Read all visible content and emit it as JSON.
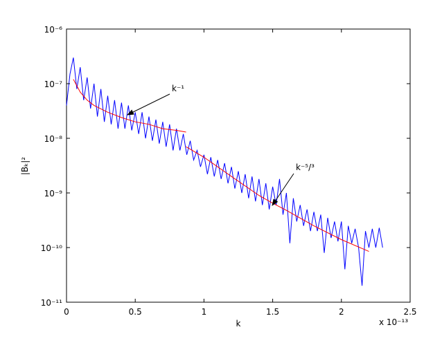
{
  "chart_data": {
    "type": "line",
    "xlabel": "k",
    "ylabel": "|Bₖ|²",
    "x_multiplier": "x 10⁻¹³",
    "yscale": "log",
    "xlim": [
      0,
      2.5
    ],
    "xticks": [
      0,
      0.5,
      1,
      1.5,
      2,
      2.5
    ],
    "ylim": [
      1e-11,
      1e-06
    ],
    "yticks": [
      {
        "value": 1e-11,
        "label": "10⁻¹¹"
      },
      {
        "value": 1e-10,
        "label": "10⁻¹⁰"
      },
      {
        "value": 1e-09,
        "label": "10⁻⁹"
      },
      {
        "value": 1e-08,
        "label": "10⁻⁸"
      },
      {
        "value": 1e-07,
        "label": "10⁻⁷"
      },
      {
        "value": 1e-06,
        "label": "10⁻⁶"
      }
    ],
    "annotations": [
      "k⁻¹",
      "k⁻⁵/³"
    ],
    "series": [
      {
        "color": "#0000ff",
        "x": [
          0,
          0.025,
          0.05,
          0.075,
          0.1,
          0.125,
          0.15,
          0.175,
          0.2,
          0.225,
          0.25,
          0.275,
          0.3,
          0.325,
          0.35,
          0.375,
          0.4,
          0.425,
          0.45,
          0.475,
          0.5,
          0.525,
          0.55,
          0.575,
          0.6,
          0.625,
          0.65,
          0.675,
          0.7,
          0.725,
          0.75,
          0.775,
          0.8,
          0.825,
          0.85,
          0.875,
          0.9,
          0.925,
          0.95,
          0.975,
          1,
          1.025,
          1.05,
          1.075,
          1.1,
          1.125,
          1.15,
          1.175,
          1.2,
          1.225,
          1.25,
          1.275,
          1.3,
          1.325,
          1.35,
          1.375,
          1.4,
          1.425,
          1.45,
          1.475,
          1.5,
          1.525,
          1.55,
          1.575,
          1.6,
          1.625,
          1.65,
          1.675,
          1.7,
          1.725,
          1.75,
          1.775,
          1.8,
          1.825,
          1.85,
          1.875,
          1.9,
          1.925,
          1.95,
          1.975,
          2,
          2.025,
          2.05,
          2.075,
          2.1,
          2.125,
          2.15,
          2.175,
          2.2,
          2.225,
          2.25,
          2.275,
          2.3
        ],
        "values": [
          4e-08,
          1.5e-07,
          3e-07,
          8e-08,
          2e-07,
          5e-08,
          1.3e-07,
          3.5e-08,
          1e-07,
          2.5e-08,
          8e-08,
          2e-08,
          6e-08,
          1.8e-08,
          5e-08,
          1.5e-08,
          4.5e-08,
          1.5e-08,
          4e-08,
          1.4e-08,
          3e-08,
          1.2e-08,
          3e-08,
          1e-08,
          2.5e-08,
          9e-09,
          2.2e-08,
          8e-09,
          2e-08,
          7e-09,
          1.8e-08,
          6e-09,
          1.5e-08,
          6e-09,
          1.2e-08,
          5e-09,
          9e-09,
          4e-09,
          6e-09,
          3e-09,
          5e-09,
          2.2e-09,
          4.5e-09,
          2e-09,
          4e-09,
          1.8e-09,
          3.5e-09,
          1.5e-09,
          3e-09,
          1.2e-09,
          2.5e-09,
          1e-09,
          2.2e-09,
          8e-10,
          2e-09,
          7e-10,
          1.8e-09,
          6e-10,
          1.5e-09,
          5e-10,
          1.3e-09,
          6e-10,
          1.8e-09,
          4e-10,
          1e-09,
          1.2e-10,
          8e-10,
          3e-10,
          6e-10,
          2.5e-10,
          5e-10,
          2e-10,
          4.5e-10,
          2e-10,
          4e-10,
          8e-11,
          3.5e-10,
          1.5e-10,
          3e-10,
          1.3e-10,
          3e-10,
          4e-11,
          2.5e-10,
          1.2e-10,
          2.2e-10,
          1e-10,
          2e-11,
          2e-10,
          1e-10,
          2.2e-10,
          1e-10,
          2.3e-10,
          1e-10
        ]
      },
      {
        "color": "#ff0000",
        "x": [
          0.05,
          0.1,
          0.15,
          0.2,
          0.3,
          0.4,
          0.5,
          0.6,
          0.7,
          0.8,
          0.87
        ],
        "values": [
          1.2e-07,
          7e-08,
          5e-08,
          4e-08,
          3e-08,
          2.4e-08,
          2e-08,
          1.8e-08,
          1.5e-08,
          1.4e-08,
          1.3e-08
        ]
      },
      {
        "color": "#ff0000",
        "x": [
          0.87,
          1,
          1.2,
          1.4,
          1.5,
          1.6,
          1.8,
          2,
          2.2
        ],
        "values": [
          7e-09,
          4.5e-09,
          2e-09,
          9e-10,
          6.5e-10,
          4.8e-10,
          2.5e-10,
          1.4e-10,
          8.5e-11
        ]
      }
    ]
  }
}
